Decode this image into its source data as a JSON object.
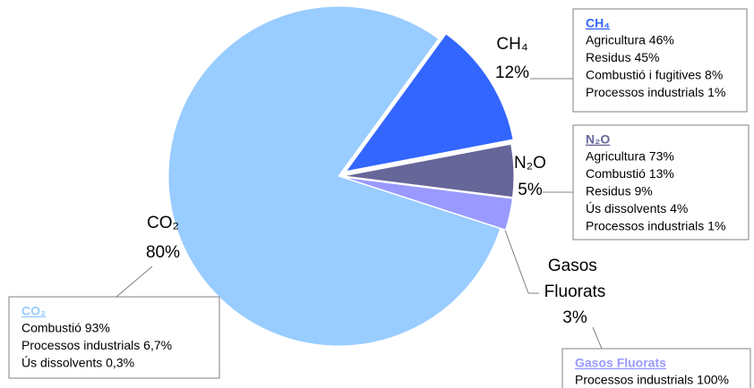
{
  "chart_data": {
    "type": "pie",
    "categories": [
      "CH₄",
      "N₂O",
      "Gasos Fluorats",
      "CO₂"
    ],
    "values": [
      12,
      5,
      3,
      80
    ],
    "value_labels": [
      "12%",
      "5%",
      "3%",
      "80%"
    ],
    "colors": [
      "#3366ff",
      "#666699",
      "#9999ff",
      "#99ccff"
    ],
    "annotations": [
      {
        "title": "CH₄",
        "lines": [
          "Agricultura 46%",
          "Residus 45%",
          "Combustió i fugitives 8%",
          "Processos industrials 1%"
        ]
      },
      {
        "title": "N₂O",
        "lines": [
          "Agricultura 73%",
          "Combustió 13%",
          "Residus 9%",
          "Ús dissolvents 4%",
          "Processos industrials 1%"
        ]
      },
      {
        "title": "Gasos Fluorats",
        "lines": [
          "Processos industrials 100%"
        ]
      },
      {
        "title": "CO₂",
        "lines": [
          "Combustió 93%",
          "Processos industrials 6,7%",
          "Ús dissolvents 0,3%"
        ]
      }
    ]
  }
}
